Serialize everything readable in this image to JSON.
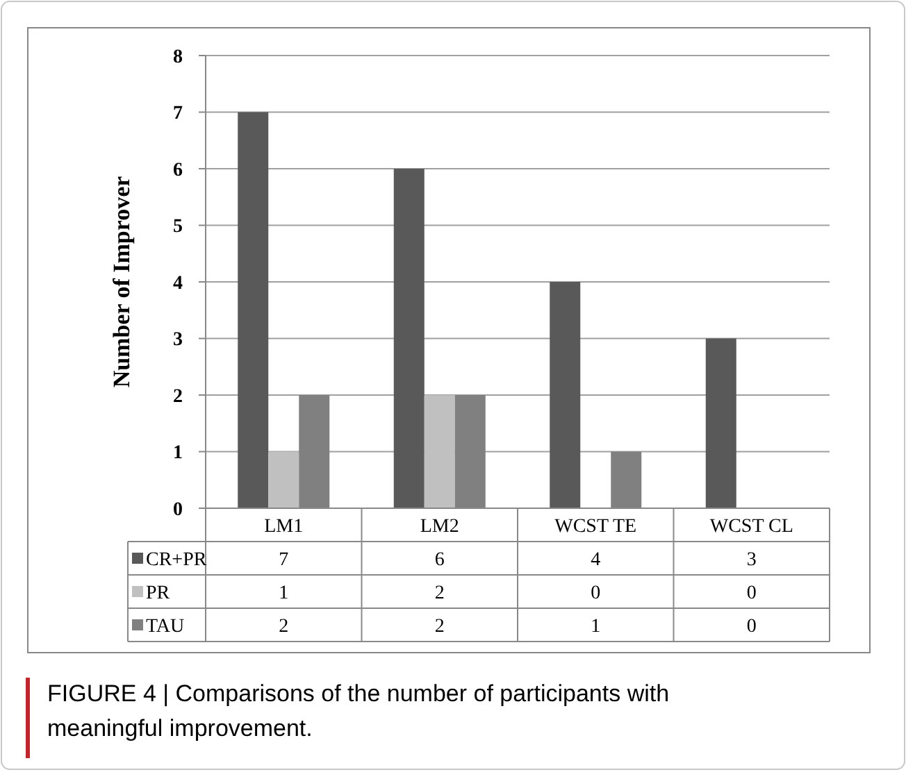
{
  "chart_data": {
    "type": "bar",
    "ylabel": "Number of Improver",
    "categories": [
      "LM1",
      "LM2",
      "WCST TE",
      "WCST CL"
    ],
    "series": [
      {
        "name": "CR+PR",
        "color": "#595959",
        "values": [
          7,
          6,
          4,
          3
        ]
      },
      {
        "name": "PR",
        "color": "#c0c0c0",
        "values": [
          1,
          2,
          0,
          0
        ]
      },
      {
        "name": "TAU",
        "color": "#808080",
        "values": [
          2,
          2,
          1,
          0
        ]
      }
    ],
    "ylim": [
      0,
      8
    ],
    "yticks": [
      0,
      1,
      2,
      3,
      4,
      5,
      6,
      7,
      8
    ],
    "grid": "y",
    "data_labels": true,
    "legend": "bottom",
    "annotations": [
      "FIGURE 4 | Comparisons of the number of participants with meaningful improvement."
    ]
  }
}
